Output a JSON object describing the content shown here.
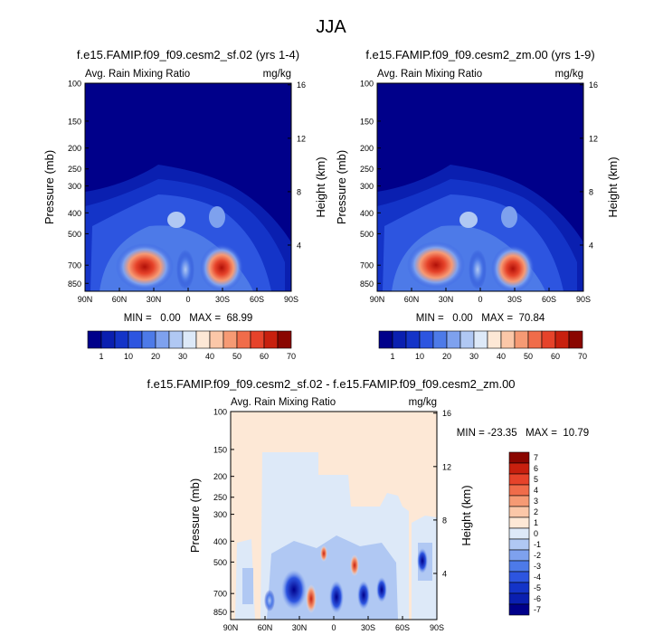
{
  "figure_title": "JJA",
  "chart_data": [
    {
      "type": "heatmap",
      "title": "f.e15.FAMIP.f09_f09.cesm2_sf.02 (yrs 1-4)",
      "subtitle_left": "Avg. Rain Mixing Ratio",
      "subtitle_right": "mg/kg",
      "ylabel": "Pressure (mb)",
      "ylabel_right": "Height (km)",
      "x_ticks": [
        "90N",
        "60N",
        "30N",
        "0",
        "30S",
        "60S",
        "90S"
      ],
      "y_ticks": [
        "100",
        "150",
        "200",
        "250",
        "300",
        "400",
        "500",
        "700",
        "850"
      ],
      "height_ticks": [
        "16",
        "12",
        "8",
        "4"
      ],
      "stats": "MIN =   0.00   MAX =  68.99",
      "min": 0.0,
      "max": 68.99,
      "field": "rain mixing ratio, latitude-pressure cross section"
    },
    {
      "type": "heatmap",
      "title": "f.e15.FAMIP.f09_f09.cesm2_zm.00 (yrs 1-9)",
      "subtitle_left": "Avg. Rain Mixing Ratio",
      "subtitle_right": "mg/kg",
      "ylabel": "Pressure (mb)",
      "ylabel_right": "Height (km)",
      "x_ticks": [
        "90N",
        "60N",
        "30N",
        "0",
        "30S",
        "60S",
        "90S"
      ],
      "y_ticks": [
        "100",
        "150",
        "200",
        "250",
        "300",
        "400",
        "500",
        "700",
        "850"
      ],
      "height_ticks": [
        "16",
        "12",
        "8",
        "4"
      ],
      "stats": "MIN =   0.00   MAX =  70.84",
      "min": 0.0,
      "max": 70.84,
      "field": "rain mixing ratio, latitude-pressure cross section"
    },
    {
      "type": "heatmap",
      "title": "f.e15.FAMIP.f09_f09.cesm2_sf.02 - f.e15.FAMIP.f09_f09.cesm2_zm.00",
      "subtitle_left": "Avg. Rain Mixing Ratio",
      "subtitle_right": "mg/kg",
      "ylabel": "Pressure (mb)",
      "ylabel_right": "Height (km)",
      "x_ticks": [
        "90N",
        "60N",
        "30N",
        "0",
        "30S",
        "60S",
        "90S"
      ],
      "y_ticks": [
        "100",
        "150",
        "200",
        "250",
        "300",
        "400",
        "500",
        "700",
        "850"
      ],
      "height_ticks": [
        "16",
        "12",
        "8",
        "4"
      ],
      "stats": "MIN = -23.35   MAX =  10.79",
      "min": -23.35,
      "max": 10.79,
      "field": "difference of rain mixing ratio"
    }
  ],
  "colorbar_top": {
    "labels": [
      "1",
      "10",
      "20",
      "30",
      "40",
      "50",
      "60",
      "70"
    ],
    "colors": [
      "#00008a",
      "#0a1fb0",
      "#1434c8",
      "#2d55e0",
      "#4d7ae8",
      "#7ea1ee",
      "#b0c8f3",
      "#dde9f8",
      "#fde8d6",
      "#fbc7a8",
      "#f69a74",
      "#f06c4a",
      "#e6432a",
      "#c8200e",
      "#8a0600"
    ]
  },
  "colorbar_diff": {
    "labels": [
      "7",
      "6",
      "5",
      "4",
      "3",
      "2",
      "1",
      "0",
      "-1",
      "-2",
      "-3",
      "-4",
      "-5",
      "-6",
      "-7"
    ],
    "colors": [
      "#8a0600",
      "#c8200e",
      "#e6432a",
      "#f06c4a",
      "#f69a74",
      "#fbc7a8",
      "#fde8d6",
      "#dde9f8",
      "#b0c8f3",
      "#7ea1ee",
      "#4d7ae8",
      "#2d55e0",
      "#1434c8",
      "#0a1fb0",
      "#00008a"
    ]
  }
}
